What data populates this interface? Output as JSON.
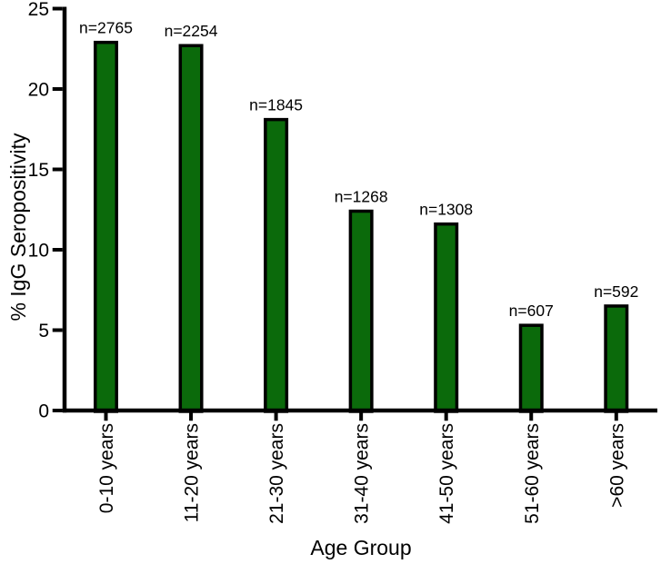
{
  "figure": {
    "background_color": "#ffffff"
  },
  "chart_data": {
    "type": "bar",
    "title": "",
    "xlabel": "Age Group",
    "ylabel": "% IgG Seropositivity",
    "categories": [
      "0-10 years",
      "11-20 years",
      "21-30 years",
      "31-40 years",
      "41-50 years",
      "51-60 years",
      ">60 years"
    ],
    "values": [
      22.9,
      22.7,
      18.1,
      12.4,
      11.6,
      5.3,
      6.5
    ],
    "bar_labels": [
      "n=2765",
      "n=2254",
      "n=1845",
      "n=1268",
      "n=1308",
      "n=607",
      "n=592"
    ],
    "yticks": [
      0,
      5,
      10,
      15,
      20,
      25
    ],
    "ylim": [
      0,
      25
    ],
    "grid": false,
    "legend": false,
    "bar_color": "#0b6a0b",
    "bar_border_color": "#000000",
    "axis_color": "#000000",
    "text_color": "#000000"
  }
}
